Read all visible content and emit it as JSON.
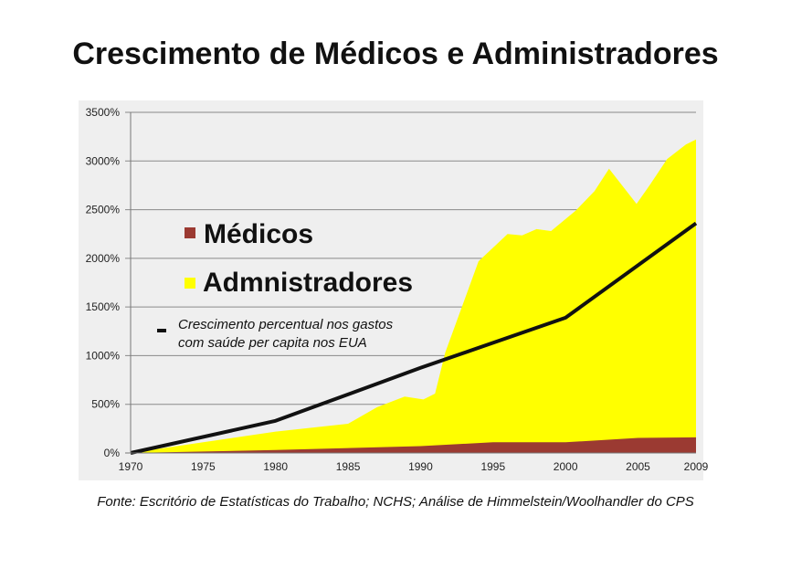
{
  "title": "Crescimento de Médicos e Administradores",
  "footer": "Fonte: Escritório de Estatísticas do Trabalho; NCHS; Análise de Himmelstein/Woolhandler do CPS",
  "chart_data": {
    "type": "area",
    "xlim": [
      1970,
      2009
    ],
    "ylim": [
      0,
      3500
    ],
    "grid": true,
    "legend_position": "center-left",
    "x_ticks": [
      "1970",
      "1975",
      "1980",
      "1985",
      "1990",
      "1995",
      "2000",
      "2005",
      "2009"
    ],
    "y_ticks": [
      "0%",
      "500%",
      "1000%",
      "1500%",
      "2000%",
      "2500%",
      "3000%",
      "3500%"
    ],
    "colors": {
      "medicos": "#9b3a32",
      "administradores": "#ffff00",
      "line": "#111111",
      "panel": "#efefef"
    },
    "legend": {
      "medicos": "Médicos",
      "administradores": "Admnistradores",
      "line_line1": "Crescimento percentual nos gastos",
      "line_line2": "com saúde per capita nos EUA"
    },
    "series": [
      {
        "name": "Admnistradores",
        "kind": "area",
        "x": [
          1970,
          1975,
          1980,
          1985,
          1987,
          1988.9,
          1990.2,
          1991,
          1991.7,
          1994,
          1996,
          1997,
          1998,
          1999,
          2000.7,
          2002,
          2003,
          2004.9,
          2005.8,
          2007,
          2008.3,
          2009
        ],
        "y": [
          0,
          110,
          220,
          300,
          470,
          580,
          550,
          610,
          1030,
          1970,
          2250,
          2235,
          2300,
          2280,
          2490,
          2690,
          2920,
          2560,
          2750,
          3020,
          3170,
          3220
        ]
      },
      {
        "name": "Médicos",
        "kind": "area",
        "x": [
          1970,
          1980,
          1990,
          1995,
          2000,
          2005,
          2009
        ],
        "y": [
          0,
          30,
          70,
          110,
          110,
          155,
          160
        ]
      },
      {
        "name": "Crescimento percentual nos gastos com saúde per capita nos EUA",
        "kind": "line",
        "x": [
          1970,
          1980,
          1990,
          2000,
          2009
        ],
        "y": [
          0,
          330,
          875,
          1390,
          2360
        ]
      }
    ]
  }
}
